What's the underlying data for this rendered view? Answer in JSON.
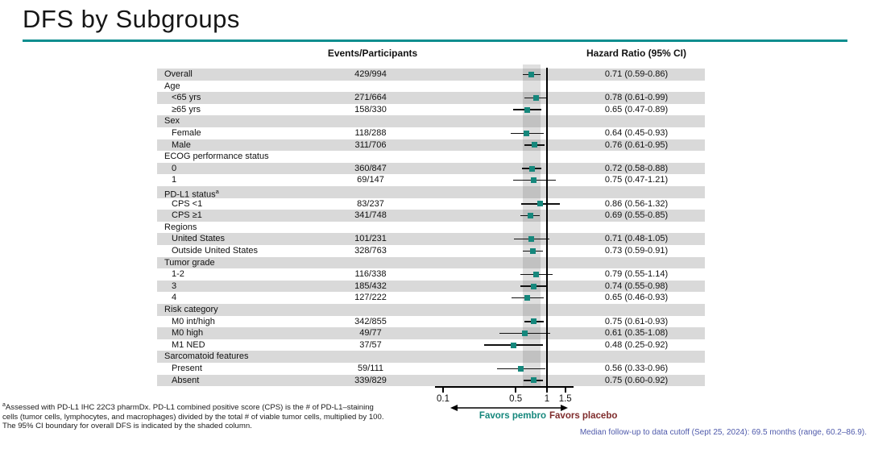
{
  "slide": {
    "title": "DFS by Subgroups"
  },
  "colors": {
    "accent_teal": "#0d8e8f",
    "marker_teal": "#15877c",
    "favors_pembro_teal": "#15877c",
    "favors_placebo_maroon": "#7e2b2b",
    "row_shade_gray": "#d9d9d9",
    "median_note_blue": "#4f5aab"
  },
  "columns": {
    "events_header": "Events/Participants",
    "hr_header": "Hazard Ratio (95% CI)"
  },
  "chart_data": {
    "type": "forest",
    "x_scale": "log10",
    "x_ticks": [
      0.1,
      0.5,
      1,
      1.5
    ],
    "x_tick_labels": [
      "0.1",
      "0.5",
      "1",
      "1.5"
    ],
    "reference_line": 1.0,
    "overall_ci_shade": [
      0.59,
      0.86
    ],
    "favors_left_label": "Favors pembro",
    "favors_right_label": "Favors placebo",
    "rows": [
      {
        "label": "Overall",
        "type": "data",
        "indent": 0,
        "events": "429/994",
        "hr": 0.71,
        "ci_low": 0.59,
        "ci_high": 0.86,
        "hr_text": "0.71 (0.59-0.86)"
      },
      {
        "label": "Age",
        "type": "group",
        "indent": 0
      },
      {
        "label": "<65 yrs",
        "type": "data",
        "indent": 1,
        "events": "271/664",
        "hr": 0.78,
        "ci_low": 0.61,
        "ci_high": 0.99,
        "hr_text": "0.78 (0.61-0.99)"
      },
      {
        "label": "≥65 yrs",
        "type": "data",
        "indent": 1,
        "events": "158/330",
        "hr": 0.65,
        "ci_low": 0.47,
        "ci_high": 0.89,
        "hr_text": "0.65 (0.47-0.89)"
      },
      {
        "label": "Sex",
        "type": "group",
        "indent": 0
      },
      {
        "label": "Female",
        "type": "data",
        "indent": 1,
        "events": "118/288",
        "hr": 0.64,
        "ci_low": 0.45,
        "ci_high": 0.93,
        "hr_text": "0.64 (0.45-0.93)"
      },
      {
        "label": "Male",
        "type": "data",
        "indent": 1,
        "events": "311/706",
        "hr": 0.76,
        "ci_low": 0.61,
        "ci_high": 0.95,
        "hr_text": "0.76 (0.61-0.95)"
      },
      {
        "label": "ECOG performance status",
        "type": "group",
        "indent": 0
      },
      {
        "label": "0",
        "type": "data",
        "indent": 1,
        "events": "360/847",
        "hr": 0.72,
        "ci_low": 0.58,
        "ci_high": 0.88,
        "hr_text": "0.72 (0.58-0.88)"
      },
      {
        "label": "1",
        "type": "data",
        "indent": 1,
        "events": "69/147",
        "hr": 0.75,
        "ci_low": 0.47,
        "ci_high": 1.21,
        "hr_text": "0.75 (0.47-1.21)"
      },
      {
        "label": "PD-L1 status",
        "sup": "a",
        "type": "group",
        "indent": 0
      },
      {
        "label": "CPS <1",
        "type": "data",
        "indent": 1,
        "events": "83/237",
        "hr": 0.86,
        "ci_low": 0.56,
        "ci_high": 1.32,
        "hr_text": "0.86 (0.56-1.32)"
      },
      {
        "label": "CPS ≥1",
        "type": "data",
        "indent": 1,
        "events": "341/748",
        "hr": 0.69,
        "ci_low": 0.55,
        "ci_high": 0.85,
        "hr_text": "0.69 (0.55-0.85)"
      },
      {
        "label": "Regions",
        "type": "group",
        "indent": 0
      },
      {
        "label": "United States",
        "type": "data",
        "indent": 1,
        "events": "101/231",
        "hr": 0.71,
        "ci_low": 0.48,
        "ci_high": 1.05,
        "hr_text": "0.71 (0.48-1.05)"
      },
      {
        "label": "Outside United States",
        "type": "data",
        "indent": 1,
        "events": "328/763",
        "hr": 0.73,
        "ci_low": 0.59,
        "ci_high": 0.91,
        "hr_text": "0.73 (0.59-0.91)"
      },
      {
        "label": "Tumor grade",
        "type": "group",
        "indent": 0
      },
      {
        "label": "1-2",
        "type": "data",
        "indent": 1,
        "events": "116/338",
        "hr": 0.79,
        "ci_low": 0.55,
        "ci_high": 1.14,
        "hr_text": "0.79 (0.55-1.14)"
      },
      {
        "label": "3",
        "type": "data",
        "indent": 1,
        "events": "185/432",
        "hr": 0.74,
        "ci_low": 0.55,
        "ci_high": 0.98,
        "hr_text": "0.74 (0.55-0.98)"
      },
      {
        "label": "4",
        "type": "data",
        "indent": 1,
        "events": "127/222",
        "hr": 0.65,
        "ci_low": 0.46,
        "ci_high": 0.93,
        "hr_text": "0.65 (0.46-0.93)"
      },
      {
        "label": "Risk category",
        "type": "group",
        "indent": 0
      },
      {
        "label": "M0 int/high",
        "type": "data",
        "indent": 1,
        "events": "342/855",
        "hr": 0.75,
        "ci_low": 0.61,
        "ci_high": 0.93,
        "hr_text": "0.75 (0.61-0.93)"
      },
      {
        "label": "M0 high",
        "type": "data",
        "indent": 1,
        "events": "49/77",
        "hr": 0.61,
        "ci_low": 0.35,
        "ci_high": 1.08,
        "hr_text": "0.61 (0.35-1.08)"
      },
      {
        "label": "M1 NED",
        "type": "data",
        "indent": 1,
        "events": "37/57",
        "hr": 0.48,
        "ci_low": 0.25,
        "ci_high": 0.92,
        "hr_text": "0.48 (0.25-0.92)"
      },
      {
        "label": "Sarcomatoid features",
        "type": "group",
        "indent": 0
      },
      {
        "label": "Present",
        "type": "data",
        "indent": 1,
        "events": "59/111",
        "hr": 0.56,
        "ci_low": 0.33,
        "ci_high": 0.96,
        "hr_text": "0.56 (0.33-0.96)"
      },
      {
        "label": "Absent",
        "type": "data",
        "indent": 1,
        "events": "339/829",
        "hr": 0.75,
        "ci_low": 0.6,
        "ci_high": 0.92,
        "hr_text": "0.75 (0.60-0.92)"
      }
    ]
  },
  "footnotes": {
    "left_sup": "a",
    "left_line1": "Assessed with PD-L1 IHC 22C3 pharmDx. PD-L1 combined positive score (CPS) is the # of PD-L1–staining",
    "left_line2": "cells (tumor cells, lymphocytes, and macrophages) divided by the total # of viable tumor cells, multiplied by 100.",
    "left_line3": "The 95% CI boundary for overall DFS is indicated by the shaded column.",
    "median_note": "Median follow-up to data cutoff (Sept 25, 2024): 69.5 months (range, 60.2–86.9)."
  }
}
